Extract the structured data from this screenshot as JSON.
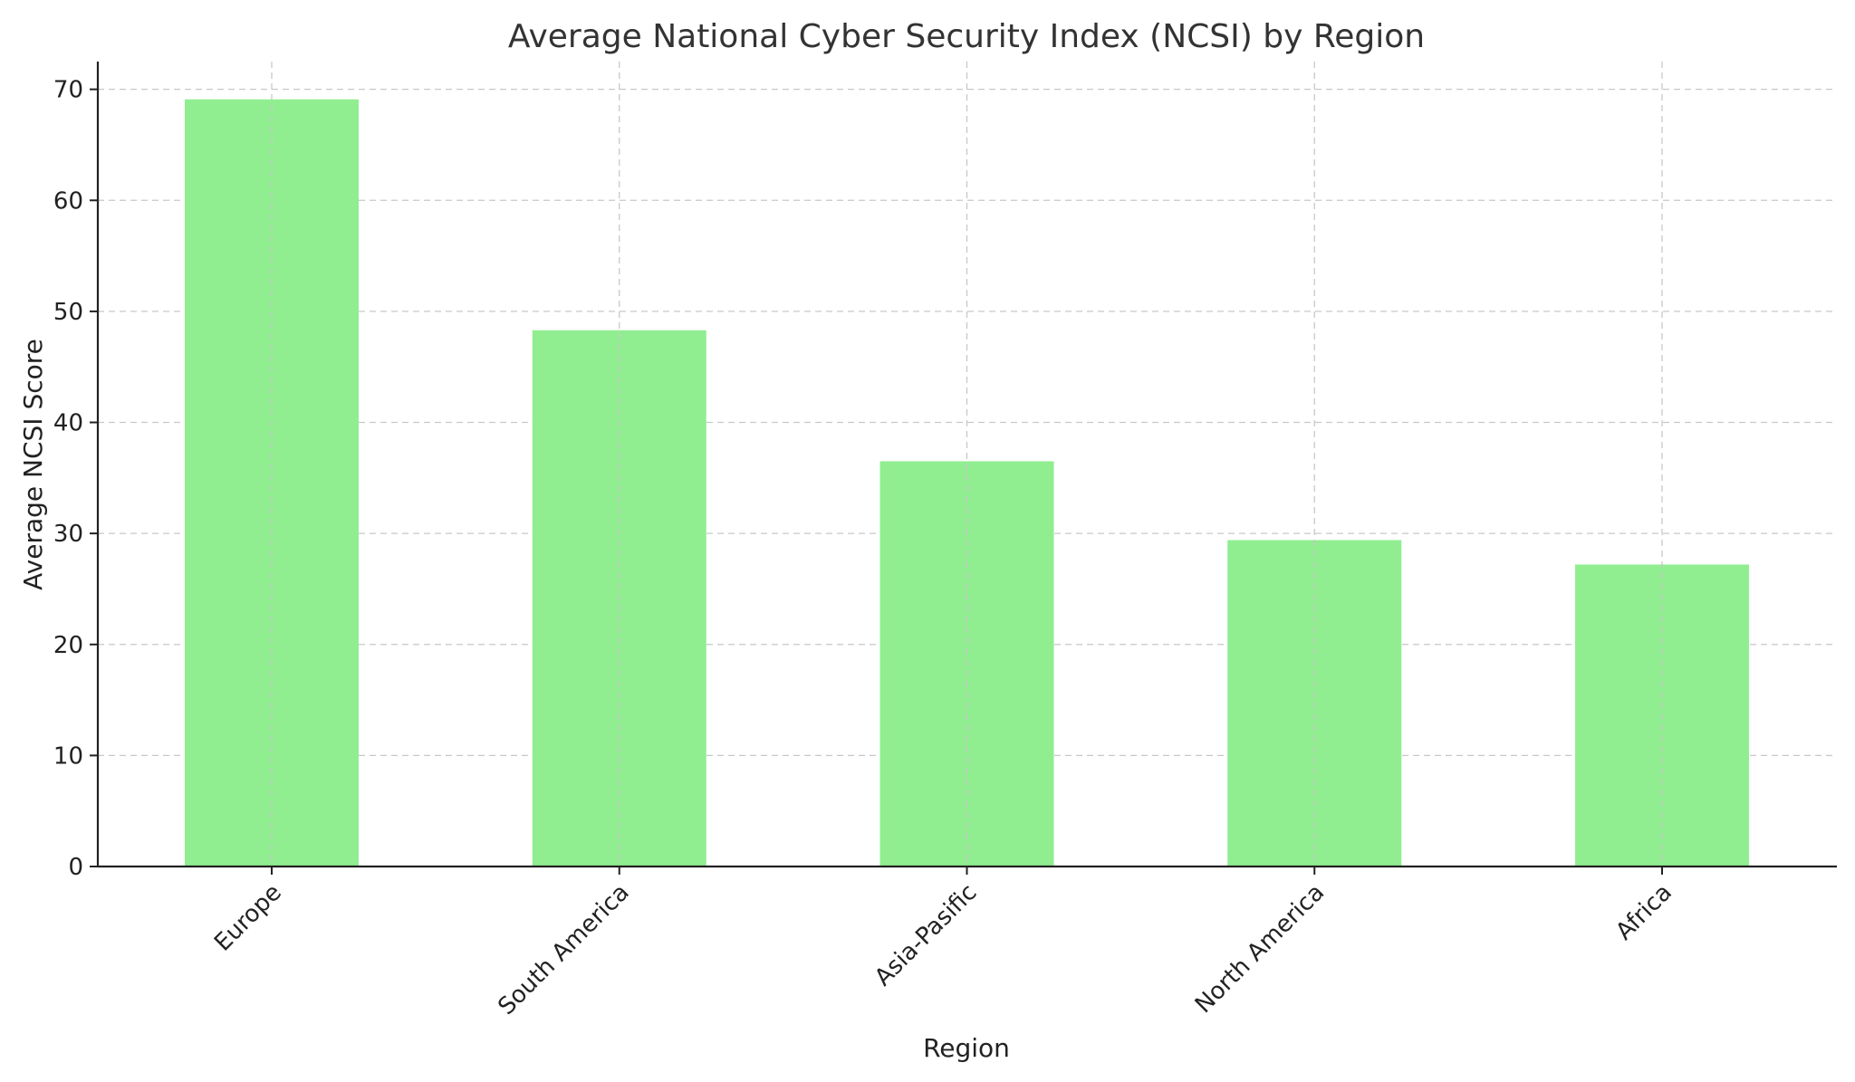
{
  "chart_data": {
    "type": "bar",
    "title": "Average National Cyber Security Index (NCSI) by Region",
    "xlabel": "Region",
    "ylabel": "Average NCSI Score",
    "categories": [
      "Europe",
      "South America",
      "Asia-Pasific",
      "North America",
      "Africa"
    ],
    "values": [
      69.1,
      48.3,
      36.5,
      29.4,
      27.2
    ],
    "ylim": [
      0,
      72.5
    ],
    "yticks": [
      0,
      10,
      20,
      30,
      40,
      50,
      60,
      70
    ],
    "grid": true,
    "bar_color": "#90ee90"
  }
}
